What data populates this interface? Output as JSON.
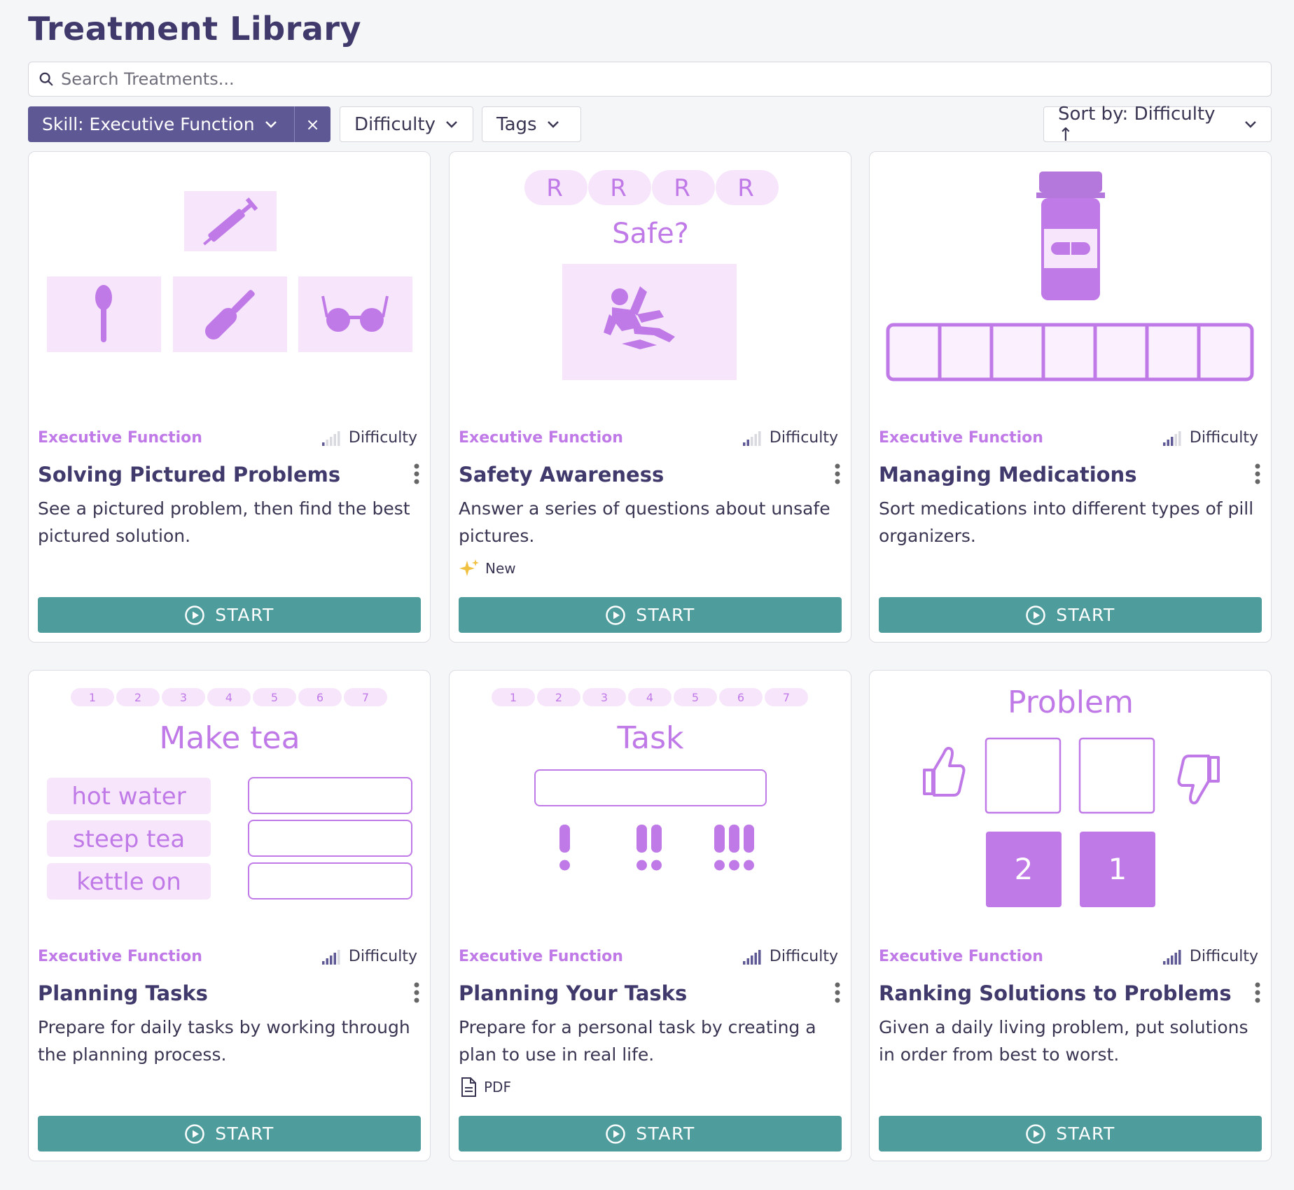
{
  "page": {
    "title": "Treatment Library"
  },
  "search": {
    "placeholder": "Search Treatments...",
    "value": ""
  },
  "filters": {
    "skill_chip": "Skill: Executive Function",
    "clear_label": "×",
    "difficulty": "Difficulty",
    "tags": "Tags",
    "sort": "Sort by: Difficulty ↑"
  },
  "colors": {
    "primary": "#5e5894",
    "accent": "#c07ae8",
    "start": "#4e9c9c",
    "title": "#3f3a6b"
  },
  "cards": [
    {
      "skill": "Executive Function",
      "difficulty_label": "Difficulty",
      "difficulty_level": 1,
      "title": "Solving Pictured Problems",
      "description": "See a pictured problem, then find the best pictured solution.",
      "badge": "",
      "start_label": "START",
      "art_icons": [
        "syringe-icon",
        "spoon-icon",
        "screwdriver-icon",
        "glasses-icon"
      ]
    },
    {
      "skill": "Executive Function",
      "difficulty_label": "Difficulty",
      "difficulty_level": 2,
      "title": "Safety Awareness",
      "description": "Answer a series of questions about unsafe pictures.",
      "badge": "New",
      "badge_icon": "sparkles-icon",
      "start_label": "START",
      "art_tokens": [
        "R",
        "R",
        "R",
        "R"
      ],
      "art_caption": "Safe?"
    },
    {
      "skill": "Executive Function",
      "difficulty_label": "Difficulty",
      "difficulty_level": 3,
      "title": "Managing Medications",
      "description": "Sort medications into different types of pill organizers.",
      "badge": "",
      "start_label": "START",
      "art_icons": [
        "pill-bottle-icon",
        "pill-organizer-icon"
      ]
    },
    {
      "skill": "Executive Function",
      "difficulty_label": "Difficulty",
      "difficulty_level": 4,
      "title": "Planning Tasks",
      "description": "Prepare for daily tasks by working through the planning process.",
      "badge": "",
      "start_label": "START",
      "art_steps": [
        "1",
        "2",
        "3",
        "4",
        "5",
        "6",
        "7"
      ],
      "art_caption": "Make tea",
      "art_items": [
        "hot water",
        "steep tea",
        "kettle on"
      ]
    },
    {
      "skill": "Executive Function",
      "difficulty_label": "Difficulty",
      "difficulty_level": 5,
      "title": "Planning Your Tasks",
      "description": "Prepare for a personal task by creating a plan to use in real life.",
      "badge": "PDF",
      "badge_icon": "document-icon",
      "start_label": "START",
      "art_steps": [
        "1",
        "2",
        "3",
        "4",
        "5",
        "6",
        "7"
      ],
      "art_caption": "Task"
    },
    {
      "skill": "Executive Function",
      "difficulty_label": "Difficulty",
      "difficulty_level": 5,
      "title": "Ranking Solutions to Problems",
      "description": "Given a daily living problem, put solutions in order from best to worst.",
      "badge": "",
      "start_label": "START",
      "art_caption": "Problem",
      "art_ranks": [
        "2",
        "1"
      ]
    }
  ]
}
